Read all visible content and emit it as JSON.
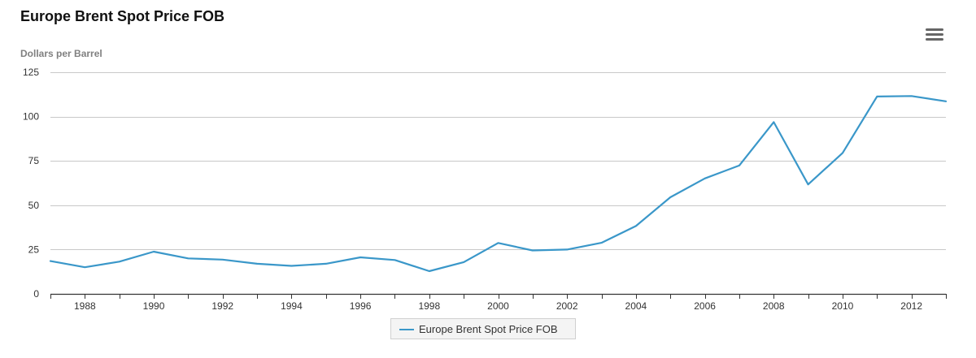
{
  "chart_data": {
    "type": "line",
    "title": "Europe Brent Spot Price FOB",
    "ylabel": "Dollars per Barrel",
    "xlabel": "",
    "xlim": [
      1987,
      2013
    ],
    "ylim": [
      0,
      125
    ],
    "x_ticks": [
      1988,
      1990,
      1992,
      1994,
      1996,
      1998,
      2000,
      2002,
      2004,
      2006,
      2008,
      2010,
      2012
    ],
    "y_ticks": [
      0,
      25,
      50,
      75,
      100,
      125
    ],
    "grid": true,
    "legend_position": "bottom-center",
    "series": [
      {
        "name": "Europe Brent Spot Price FOB",
        "color": "#3a97c9",
        "x": [
          1987,
          1988,
          1989,
          1990,
          1991,
          1992,
          1993,
          1994,
          1995,
          1996,
          1997,
          1998,
          1999,
          2000,
          2001,
          2002,
          2003,
          2004,
          2005,
          2006,
          2007,
          2008,
          2009,
          2010,
          2011,
          2012,
          2013
        ],
        "y": [
          18.5,
          15.0,
          18.2,
          23.8,
          20.0,
          19.3,
          17.0,
          15.8,
          17.0,
          20.6,
          19.1,
          12.8,
          17.9,
          28.7,
          24.5,
          25.0,
          28.8,
          38.3,
          54.5,
          65.1,
          72.4,
          96.9,
          61.7,
          79.5,
          111.3,
          111.6,
          108.6
        ]
      }
    ]
  },
  "toolbar": {
    "menu_icon": "hamburger-menu-icon"
  }
}
